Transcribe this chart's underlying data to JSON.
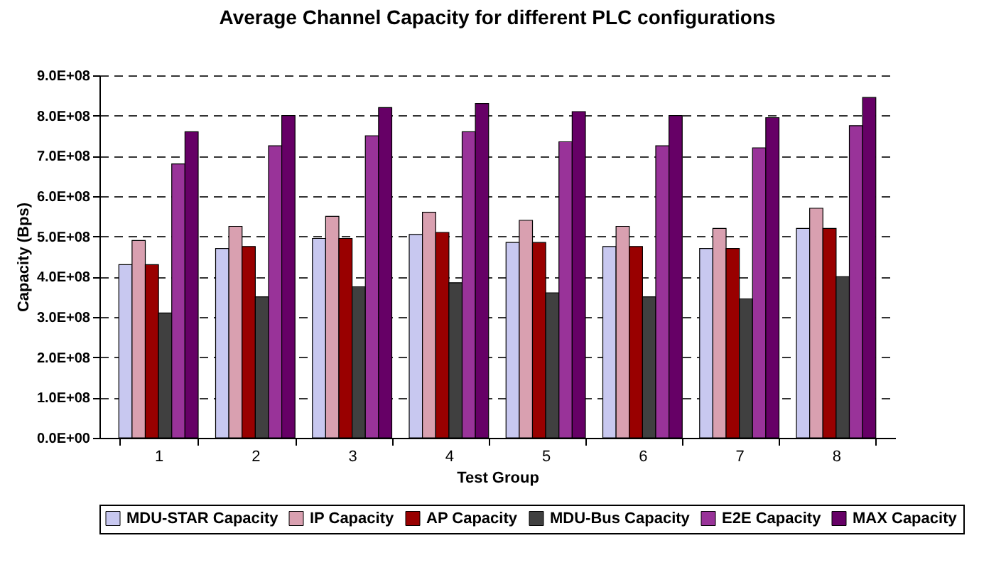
{
  "chart_data": {
    "type": "bar",
    "title": "Average Channel Capacity for different PLC configurations",
    "xlabel": "Test Group",
    "ylabel": "Capacity (Bps)",
    "categories": [
      "1",
      "2",
      "3",
      "4",
      "5",
      "6",
      "7",
      "8"
    ],
    "series": [
      {
        "name": "MDU-STAR Capacity",
        "color": "#c8c8f0",
        "values": [
          430000000,
          470000000,
          495000000,
          505000000,
          485000000,
          475000000,
          470000000,
          520000000
        ]
      },
      {
        "name": "IP Capacity",
        "color": "#d9a0b0",
        "values": [
          490000000,
          525000000,
          550000000,
          560000000,
          540000000,
          525000000,
          520000000,
          570000000
        ]
      },
      {
        "name": "AP Capacity",
        "color": "#990000",
        "values": [
          430000000,
          475000000,
          495000000,
          510000000,
          485000000,
          475000000,
          470000000,
          520000000
        ]
      },
      {
        "name": "MDU-Bus Capacity",
        "color": "#404040",
        "values": [
          310000000,
          350000000,
          375000000,
          385000000,
          360000000,
          350000000,
          345000000,
          400000000
        ]
      },
      {
        "name": "E2E Capacity",
        "color": "#993399",
        "values": [
          680000000,
          725000000,
          750000000,
          760000000,
          735000000,
          725000000,
          720000000,
          775000000
        ]
      },
      {
        "name": "MAX Capacity",
        "color": "#660066",
        "values": [
          760000000,
          800000000,
          820000000,
          830000000,
          810000000,
          800000000,
          795000000,
          845000000
        ]
      }
    ],
    "ylim": [
      0,
      900000000
    ],
    "yticks": [
      {
        "value": 0,
        "label": "0.0E+00"
      },
      {
        "value": 100000000,
        "label": "1.0E+08"
      },
      {
        "value": 200000000,
        "label": "2.0E+08"
      },
      {
        "value": 300000000,
        "label": "3.0E+08"
      },
      {
        "value": 400000000,
        "label": "4.0E+08"
      },
      {
        "value": 500000000,
        "label": "5.0E+08"
      },
      {
        "value": 600000000,
        "label": "6.0E+08"
      },
      {
        "value": 700000000,
        "label": "7.0E+08"
      },
      {
        "value": 800000000,
        "label": "8.0E+08"
      },
      {
        "value": 900000000,
        "label": "9.0E+08"
      }
    ],
    "grid": "y",
    "legend": "bottom"
  }
}
